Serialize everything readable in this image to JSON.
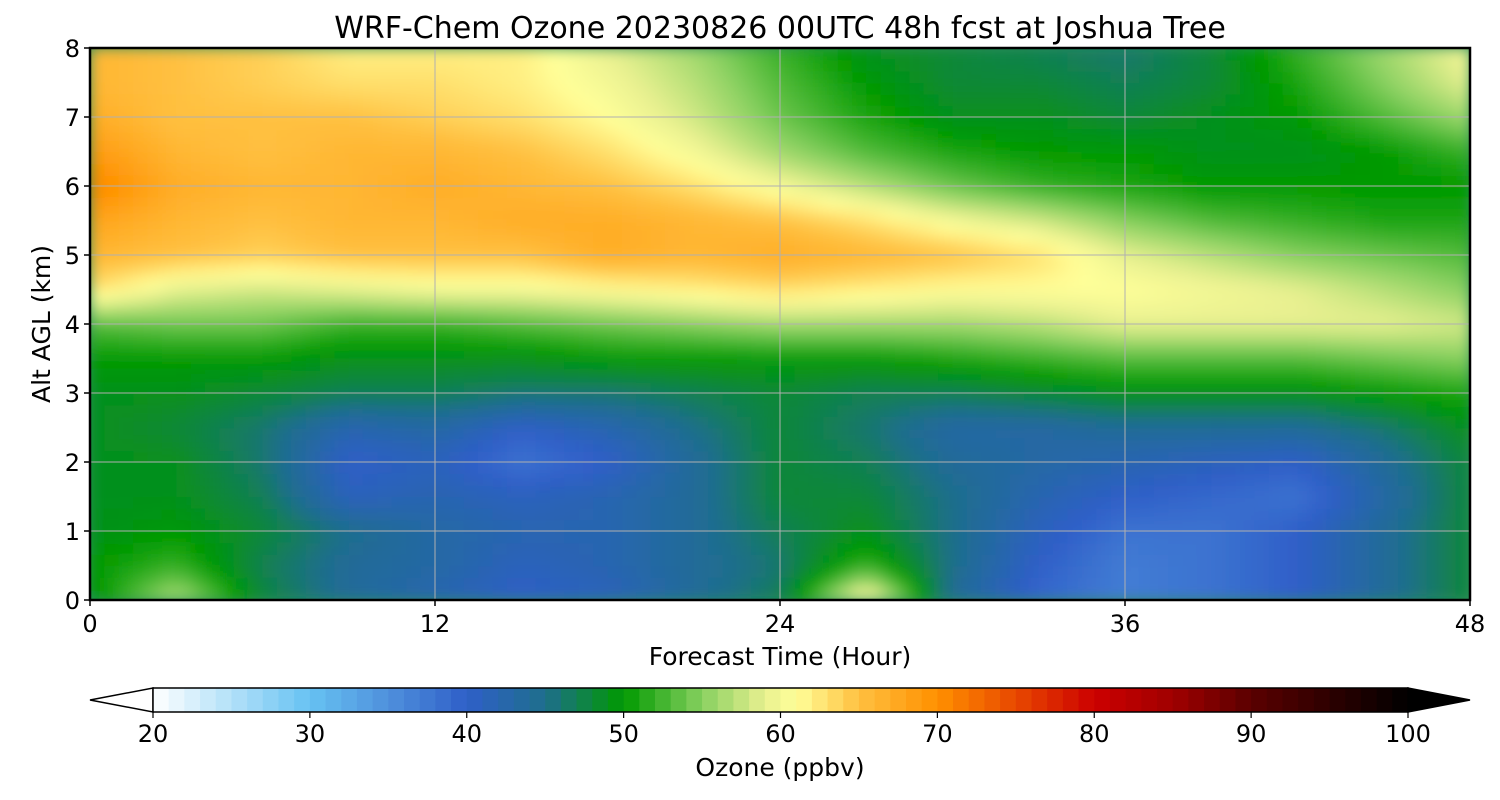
{
  "chart_data": {
    "type": "heatmap",
    "title": "WRF-Chem Ozone  20230826 00UTC 48h fcst at Joshua Tree",
    "xlabel": "Forecast Time (Hour)",
    "ylabel": "Alt AGL (km)",
    "xlim": [
      0,
      48
    ],
    "ylim": [
      0,
      8
    ],
    "x_ticks": [
      "0",
      "12",
      "24",
      "36",
      "48"
    ],
    "y_ticks": [
      "0",
      "1",
      "2",
      "3",
      "4",
      "5",
      "6",
      "7",
      "8"
    ],
    "grid": true,
    "x": [
      0,
      3,
      6,
      9,
      12,
      15,
      18,
      21,
      24,
      27,
      30,
      33,
      36,
      39,
      42,
      45,
      48
    ],
    "y": [
      0,
      0.5,
      1,
      1.5,
      2,
      2.5,
      3,
      3.5,
      4,
      4.5,
      5,
      5.5,
      6,
      6.5,
      7,
      7.5,
      8
    ],
    "z": [
      [
        49,
        57,
        48,
        44,
        42,
        40,
        41,
        44,
        47,
        62,
        44,
        39,
        37,
        38,
        40,
        44,
        48
      ],
      [
        50,
        52,
        47,
        44,
        43,
        41,
        42,
        44,
        46,
        52,
        45,
        40,
        37,
        38,
        40,
        44,
        48
      ],
      [
        49,
        50,
        48,
        45,
        43,
        42,
        42,
        44,
        47,
        49,
        45,
        41,
        38,
        38,
        40,
        44,
        48
      ],
      [
        49,
        49,
        47,
        41,
        42,
        41,
        42,
        44,
        48,
        48,
        45,
        42,
        40,
        39,
        38,
        43,
        48
      ],
      [
        49,
        49,
        46,
        40,
        41,
        38,
        40,
        44,
        48,
        47,
        44,
        43,
        42,
        41,
        40,
        44,
        48
      ],
      [
        49,
        48,
        46,
        42,
        43,
        40,
        42,
        45,
        48,
        46,
        43,
        43,
        44,
        44,
        44,
        46,
        49
      ],
      [
        49,
        49,
        48,
        47,
        47,
        46,
        46,
        47,
        48,
        47,
        47,
        48,
        49,
        49,
        49,
        50,
        51
      ],
      [
        50,
        50,
        50,
        49,
        49,
        49,
        50,
        50,
        50,
        50,
        51,
        52,
        53,
        53,
        53,
        54,
        55
      ],
      [
        53,
        54,
        54,
        52,
        52,
        53,
        54,
        55,
        56,
        56,
        56,
        57,
        59,
        59,
        59,
        59,
        58
      ],
      [
        63,
        59,
        58,
        59,
        60,
        60,
        61,
        62,
        63,
        62,
        61,
        61,
        61,
        60,
        59,
        57,
        55
      ],
      [
        66,
        65,
        64,
        65,
        65,
        65,
        67,
        66,
        67,
        66,
        65,
        63,
        59,
        57,
        55,
        54,
        53
      ],
      [
        68,
        66,
        65,
        66,
        66,
        67,
        67,
        66,
        65,
        63,
        60,
        58,
        55,
        53,
        52,
        51,
        51
      ],
      [
        71,
        67,
        66,
        66,
        67,
        66,
        65,
        63,
        60,
        57,
        54,
        52,
        51,
        50,
        50,
        50,
        50
      ],
      [
        69,
        66,
        65,
        66,
        66,
        65,
        63,
        60,
        56,
        53,
        51,
        50,
        50,
        49,
        49,
        50,
        52
      ],
      [
        67,
        65,
        65,
        65,
        64,
        63,
        61,
        58,
        54,
        51,
        49,
        49,
        48,
        49,
        50,
        53,
        56
      ],
      [
        66,
        65,
        64,
        63,
        63,
        62,
        60,
        57,
        53,
        50,
        48,
        48,
        47,
        48,
        51,
        55,
        59
      ],
      [
        66,
        65,
        64,
        62,
        62,
        62,
        59,
        56,
        52,
        49,
        48,
        47,
        46,
        48,
        52,
        56,
        60
      ]
    ],
    "colorbar": {
      "label": "Ozone  (ppbv)",
      "range": [
        20,
        100
      ],
      "ticks": [
        "20",
        "30",
        "40",
        "50",
        "60",
        "70",
        "80",
        "90",
        "100"
      ],
      "extend": "both",
      "color_stops": [
        {
          "value": 20,
          "color": "#ffffff"
        },
        {
          "value": 30,
          "color": "#66c2f2"
        },
        {
          "value": 35,
          "color": "#4f90dc"
        },
        {
          "value": 40,
          "color": "#2f5fc8"
        },
        {
          "value": 45,
          "color": "#1e6e8c"
        },
        {
          "value": 50,
          "color": "#009900"
        },
        {
          "value": 55,
          "color": "#88d060"
        },
        {
          "value": 59,
          "color": "#e8f090"
        },
        {
          "value": 61,
          "color": "#ffff99"
        },
        {
          "value": 65,
          "color": "#ffc040"
        },
        {
          "value": 70,
          "color": "#ff9000"
        },
        {
          "value": 75,
          "color": "#e84800"
        },
        {
          "value": 80,
          "color": "#cc0000"
        },
        {
          "value": 85,
          "color": "#a00000"
        },
        {
          "value": 90,
          "color": "#5a0000"
        },
        {
          "value": 100,
          "color": "#000000"
        }
      ]
    }
  }
}
